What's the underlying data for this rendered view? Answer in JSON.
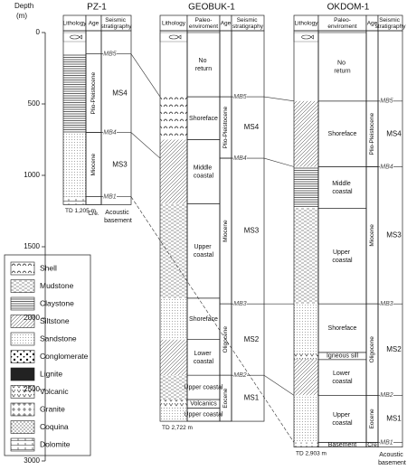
{
  "depth_axis": {
    "label": "Depth",
    "unit": "(m)",
    "range": [
      0,
      3000
    ],
    "ticks": [
      0,
      500,
      1000,
      1500,
      2000,
      2500,
      3000
    ]
  },
  "wells": [
    {
      "name": "PZ-1",
      "headers": [
        "Lithology",
        "Age",
        "Seismic stratigraphy"
      ],
      "td": 1205,
      "td_label": "TD 1,205 m",
      "basement_label": "Acoustic basement",
      "ages": [
        {
          "label": "Plio-Pleistocene",
          "top": 150,
          "bottom": 700
        },
        {
          "label": "Miocene",
          "top": 700,
          "bottom": 1150
        },
        {
          "label": "Cre.",
          "top": 1150,
          "bottom": 1205
        }
      ],
      "horizons": [
        {
          "label": "MB5",
          "depth": 150
        },
        {
          "label": "MB4",
          "depth": 700
        },
        {
          "label": "MB1",
          "depth": 1150
        }
      ],
      "units": [
        {
          "label": "MS4",
          "top": 150,
          "bottom": 700
        },
        {
          "label": "MS3",
          "top": 700,
          "bottom": 1150
        }
      ]
    },
    {
      "name": "GEOBUK-1",
      "headers": [
        "Lithology",
        "Paleo-enviroment",
        "Age",
        "Seismic stratigraphy"
      ],
      "td": 2722,
      "td_label": "TD 2,722 m",
      "environments": [
        {
          "label": "No return",
          "top": 0,
          "bottom": 450
        },
        {
          "label": "Shoreface",
          "top": 450,
          "bottom": 750
        },
        {
          "label": "Middle coastal",
          "top": 750,
          "bottom": 1200
        },
        {
          "label": "Upper coastal",
          "top": 1200,
          "bottom": 1860
        },
        {
          "label": "Shoreface",
          "top": 1860,
          "bottom": 2150
        },
        {
          "label": "Lower coastal",
          "top": 2150,
          "bottom": 2400
        },
        {
          "label": "Upper coastal",
          "top": 2400,
          "bottom": 2570
        },
        {
          "label": "Volcanics",
          "top": 2570,
          "bottom": 2630
        },
        {
          "label": "Upper coastal",
          "top": 2630,
          "bottom": 2722
        }
      ],
      "ages": [
        {
          "label": "Plio-Pleistocene",
          "top": 450,
          "bottom": 880
        },
        {
          "label": "Miocene",
          "top": 880,
          "bottom": 1900
        },
        {
          "label": "Oligocene",
          "top": 1900,
          "bottom": 2400
        },
        {
          "label": "Eocene",
          "top": 2400,
          "bottom": 2722
        }
      ],
      "horizons": [
        {
          "label": "MB5",
          "depth": 450
        },
        {
          "label": "MB4",
          "depth": 880
        },
        {
          "label": "MB3",
          "depth": 1900
        },
        {
          "label": "MB2",
          "depth": 2400
        }
      ],
      "units": [
        {
          "label": "MS4",
          "top": 450,
          "bottom": 880
        },
        {
          "label": "MS3",
          "top": 880,
          "bottom": 1900
        },
        {
          "label": "MS2",
          "top": 1900,
          "bottom": 2400
        },
        {
          "label": "MS1",
          "top": 2400,
          "bottom": 2722
        }
      ]
    },
    {
      "name": "OKDOM-1",
      "headers": [
        "Lithology",
        "Paleo-enviroment",
        "Age",
        "Seismic stratigraphy"
      ],
      "td": 2903,
      "td_label": "TD 2,903 m",
      "basement_label": "Acoustic basement",
      "environments": [
        {
          "label": "No return",
          "top": 0,
          "bottom": 480
        },
        {
          "label": "Shoreface",
          "top": 480,
          "bottom": 940
        },
        {
          "label": "Middle coastal",
          "top": 940,
          "bottom": 1230
        },
        {
          "label": "Upper coastal",
          "top": 1230,
          "bottom": 1900
        },
        {
          "label": "Shoreface",
          "top": 1900,
          "bottom": 2240
        },
        {
          "label": "Igneous sill",
          "top": 2240,
          "bottom": 2290
        },
        {
          "label": "Lower coastal",
          "top": 2290,
          "bottom": 2540
        },
        {
          "label": "Upper coastal",
          "top": 2540,
          "bottom": 2870
        },
        {
          "label": "Basement",
          "top": 2870,
          "bottom": 2903
        }
      ],
      "ages": [
        {
          "label": "Plio-Pleistocene",
          "top": 480,
          "bottom": 940
        },
        {
          "label": "Miocene",
          "top": 940,
          "bottom": 1900
        },
        {
          "label": "Oligocene",
          "top": 1900,
          "bottom": 2540
        },
        {
          "label": "Eocene",
          "top": 2540,
          "bottom": 2870
        },
        {
          "label": "Cre",
          "top": 2870,
          "bottom": 2903
        }
      ],
      "horizons": [
        {
          "label": "MB5",
          "depth": 480
        },
        {
          "label": "MB4",
          "depth": 940
        },
        {
          "label": "MB3",
          "depth": 1900
        },
        {
          "label": "MB2",
          "depth": 2540
        },
        {
          "label": "MB1",
          "depth": 2870
        }
      ],
      "units": [
        {
          "label": "MS4",
          "top": 480,
          "bottom": 940
        },
        {
          "label": "MS3",
          "top": 940,
          "bottom": 1900
        },
        {
          "label": "MS2",
          "top": 1900,
          "bottom": 2540
        },
        {
          "label": "MS1",
          "top": 2540,
          "bottom": 2870
        }
      ]
    }
  ],
  "legend": [
    "Shell",
    "Mudstone",
    "Claystone",
    "Siltstone",
    "Sandstone",
    "Conglomerate",
    "Lignite",
    "Volcanic",
    "Granite",
    "Coquina",
    "Dolomite"
  ]
}
